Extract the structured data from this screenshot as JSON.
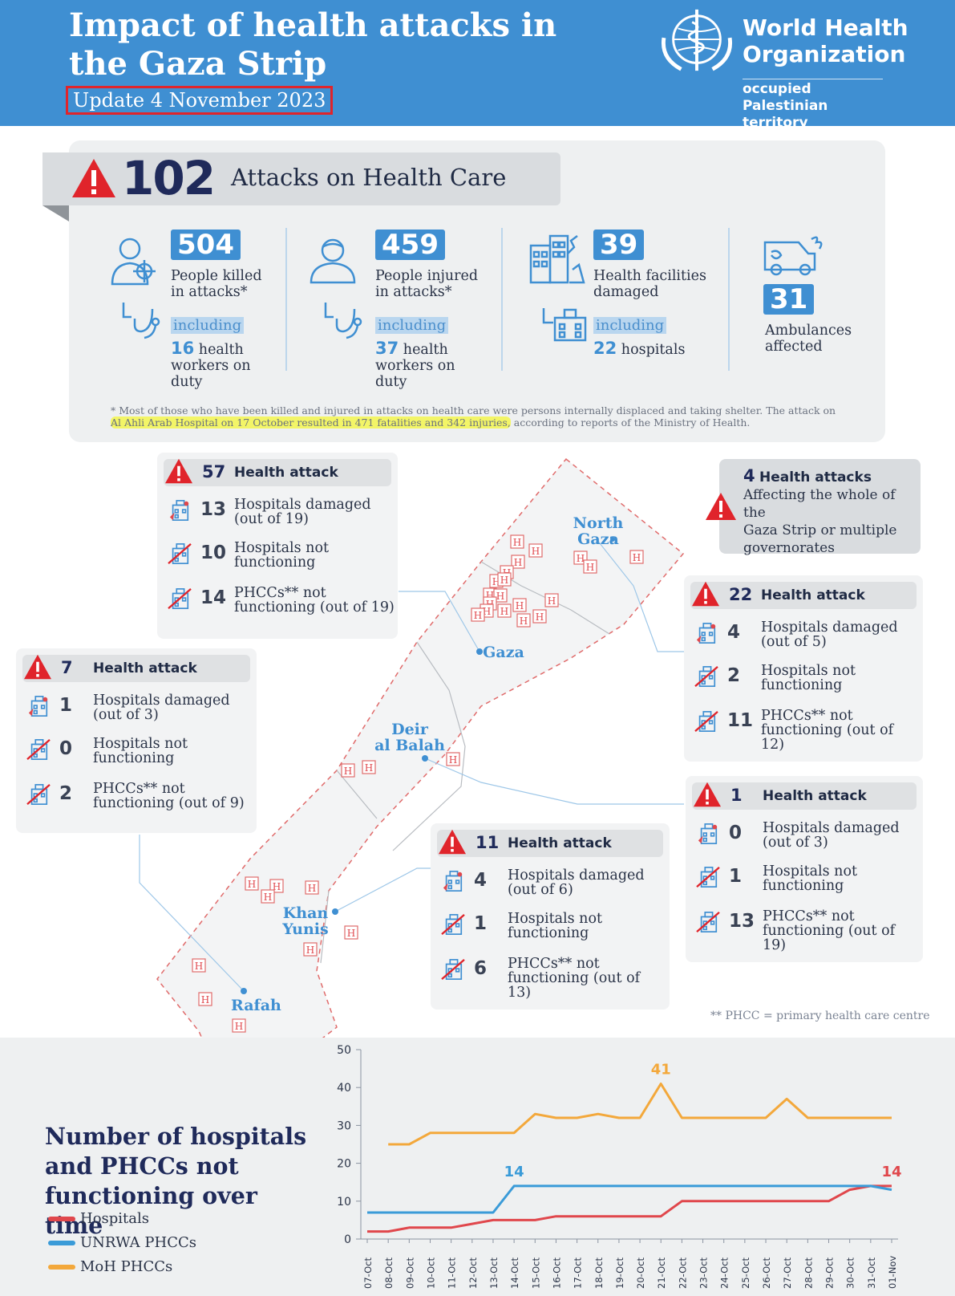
{
  "header": {
    "title": "Impact of health attacks in the Gaza Strip",
    "update": "Update 4 November 2023",
    "org_name_line1": "World Health",
    "org_name_line2": "Organization",
    "org_sub_line1": "occupied Palestinian",
    "org_sub_line2": "territory"
  },
  "summary": {
    "total_attacks": "102",
    "total_label": "Attacks on Health Care",
    "stats": [
      {
        "value": "504",
        "label_line1": "People killed",
        "label_line2": "in attacks*",
        "including": "including",
        "sub_value": "16",
        "sub_text_1": " health",
        "sub_text_2": "workers on",
        "sub_text_3": "duty"
      },
      {
        "value": "459",
        "label_line1": "People injured",
        "label_line2": "in attacks*",
        "including": "including",
        "sub_value": "37",
        "sub_text_1": " health",
        "sub_text_2": "workers on",
        "sub_text_3": "duty"
      },
      {
        "value": "39",
        "label_line1": "Health facilities",
        "label_line2": "damaged",
        "including": "including",
        "sub_value": "22",
        "sub_text_1": " hospitals"
      },
      {
        "value": "31",
        "label_line1": "Ambulances",
        "label_line2": "affected"
      }
    ],
    "footnote_pre": "* Most of those who have been killed and injured in attacks on health care were persons internally displaced and taking shelter. The attack on",
    "footnote_highlight": "Al Ahli Arab Hospital on 17 October resulted in 471 fatalities and 342 injuries,",
    "footnote_post": " according to reports of the Ministry of Health."
  },
  "map": {
    "regions": {
      "north_gaza_1": "North",
      "north_gaza_2": "Gaza",
      "gaza": "Gaza",
      "deir_1": "Deir",
      "deir_2": "al Balah",
      "khan_1": "Khan",
      "khan_2": "Yunis",
      "rafah": "Rafah"
    },
    "hospital_marker": "H",
    "whole_strip": {
      "num": "4",
      "title": "Health attacks",
      "text_1": "Affecting the whole of the",
      "text_2": "Gaza Strip or multiple",
      "text_3": "governorates"
    },
    "cards": {
      "gaza": {
        "num": "57",
        "title": "Health attack",
        "rows": [
          {
            "num": "13",
            "l1": "Hospitals damaged",
            "l2": "(out of 19)"
          },
          {
            "num": "10",
            "l1": "Hospitals not",
            "l2": "functioning"
          },
          {
            "num": "14",
            "l1": "PHCCs** not",
            "l2": "functioning (out of 19)"
          }
        ]
      },
      "rafah": {
        "num": "7",
        "title": "Health attack",
        "rows": [
          {
            "num": "1",
            "l1": "Hospitals damaged",
            "l2": "(out of 3)"
          },
          {
            "num": "0",
            "l1": "Hospitals not",
            "l2": "functioning"
          },
          {
            "num": "2",
            "l1": "PHCCs** not",
            "l2": "functioning (out of 9)"
          }
        ]
      },
      "north": {
        "num": "22",
        "title": "Health attack",
        "rows": [
          {
            "num": "4",
            "l1": "Hospitals damaged",
            "l2": "(out of 5)"
          },
          {
            "num": "2",
            "l1": "Hospitals not",
            "l2": "functioning"
          },
          {
            "num": "11",
            "l1": "PHCCs** not",
            "l2": "functioning (out of 12)"
          }
        ]
      },
      "deir": {
        "num": "1",
        "title": "Health attack",
        "rows": [
          {
            "num": "0",
            "l1": "Hospitals damaged",
            "l2": "(out of 3)"
          },
          {
            "num": "1",
            "l1": "Hospitals not",
            "l2": "functioning"
          },
          {
            "num": "13",
            "l1": "PHCCs** not",
            "l2": "functioning (out of 19)"
          }
        ]
      },
      "khan": {
        "num": "11",
        "title": "Health attack",
        "rows": [
          {
            "num": "4",
            "l1": "Hospitals damaged",
            "l2": "(out of 6)"
          },
          {
            "num": "1",
            "l1": "Hospitals not",
            "l2": "functioning"
          },
          {
            "num": "6",
            "l1": "PHCCs** not",
            "l2": "functioning (out of 13)"
          }
        ]
      }
    },
    "phcc_note": "** PHCC = primary health care centre"
  },
  "chart_title": "Number of hospitals and PHCCs not functioning over time",
  "chart_data": {
    "type": "line",
    "x": [
      "07-Oct",
      "08-Oct",
      "09-Oct",
      "10-Oct",
      "11-Oct",
      "12-Oct",
      "13-Oct",
      "14-Oct",
      "15-Oct",
      "16-Oct",
      "17-Oct",
      "18-Oct",
      "19-Oct",
      "20-Oct",
      "21-Oct",
      "22-Oct",
      "23-Oct",
      "24-Oct",
      "25-Oct",
      "26-Oct",
      "27-Oct",
      "28-Oct",
      "29-Oct",
      "30-Oct",
      "31-Oct",
      "01-Nov"
    ],
    "ylim": [
      0,
      50
    ],
    "yticks": [
      0,
      10,
      20,
      30,
      40,
      50
    ],
    "grid": false,
    "legend_position": "bottom-left",
    "series": [
      {
        "name": "Hospitals",
        "color": "#e0474c",
        "values": [
          2,
          2,
          3,
          3,
          3,
          4,
          5,
          5,
          5,
          6,
          6,
          6,
          6,
          6,
          6,
          10,
          10,
          10,
          10,
          10,
          10,
          10,
          10,
          13,
          14,
          14
        ]
      },
      {
        "name": "UNRWA PHCCs",
        "color": "#3a9bd8",
        "values": [
          7,
          7,
          7,
          7,
          7,
          7,
          7,
          14,
          14,
          14,
          14,
          14,
          14,
          14,
          14,
          14,
          14,
          14,
          14,
          14,
          14,
          14,
          14,
          14,
          14,
          13
        ]
      },
      {
        "name": "MoH PHCCs",
        "color": "#f3a83b",
        "values": [
          null,
          25,
          25,
          28,
          28,
          28,
          28,
          28,
          33,
          32,
          32,
          33,
          32,
          32,
          41,
          32,
          32,
          32,
          32,
          32,
          37,
          32,
          32,
          32,
          32,
          32
        ]
      }
    ],
    "annotations": [
      {
        "text": "41",
        "series": "MoH PHCCs",
        "x": "21-Oct",
        "y": 41,
        "color": "#f3a83b"
      },
      {
        "text": "14",
        "series": "UNRWA PHCCs",
        "x": "14-Oct",
        "y": 14,
        "color": "#3a9bd8"
      },
      {
        "text": "14",
        "series": "Hospitals",
        "x": "01-Nov",
        "y": 14,
        "color": "#e0474c"
      }
    ]
  },
  "colors": {
    "header_blue": "#3f8fd2",
    "alert_red": "#e0242b",
    "navy": "#1f2a5a"
  },
  "icons": [
    "warning-triangle-icon",
    "health-worker-target-icon",
    "stethoscope-icon",
    "injured-person-icon",
    "damaged-building-icon",
    "hospital-icon",
    "ambulance-icon",
    "hospital-damaged-icon",
    "hospital-crossed-icon",
    "phcc-crossed-icon"
  ]
}
